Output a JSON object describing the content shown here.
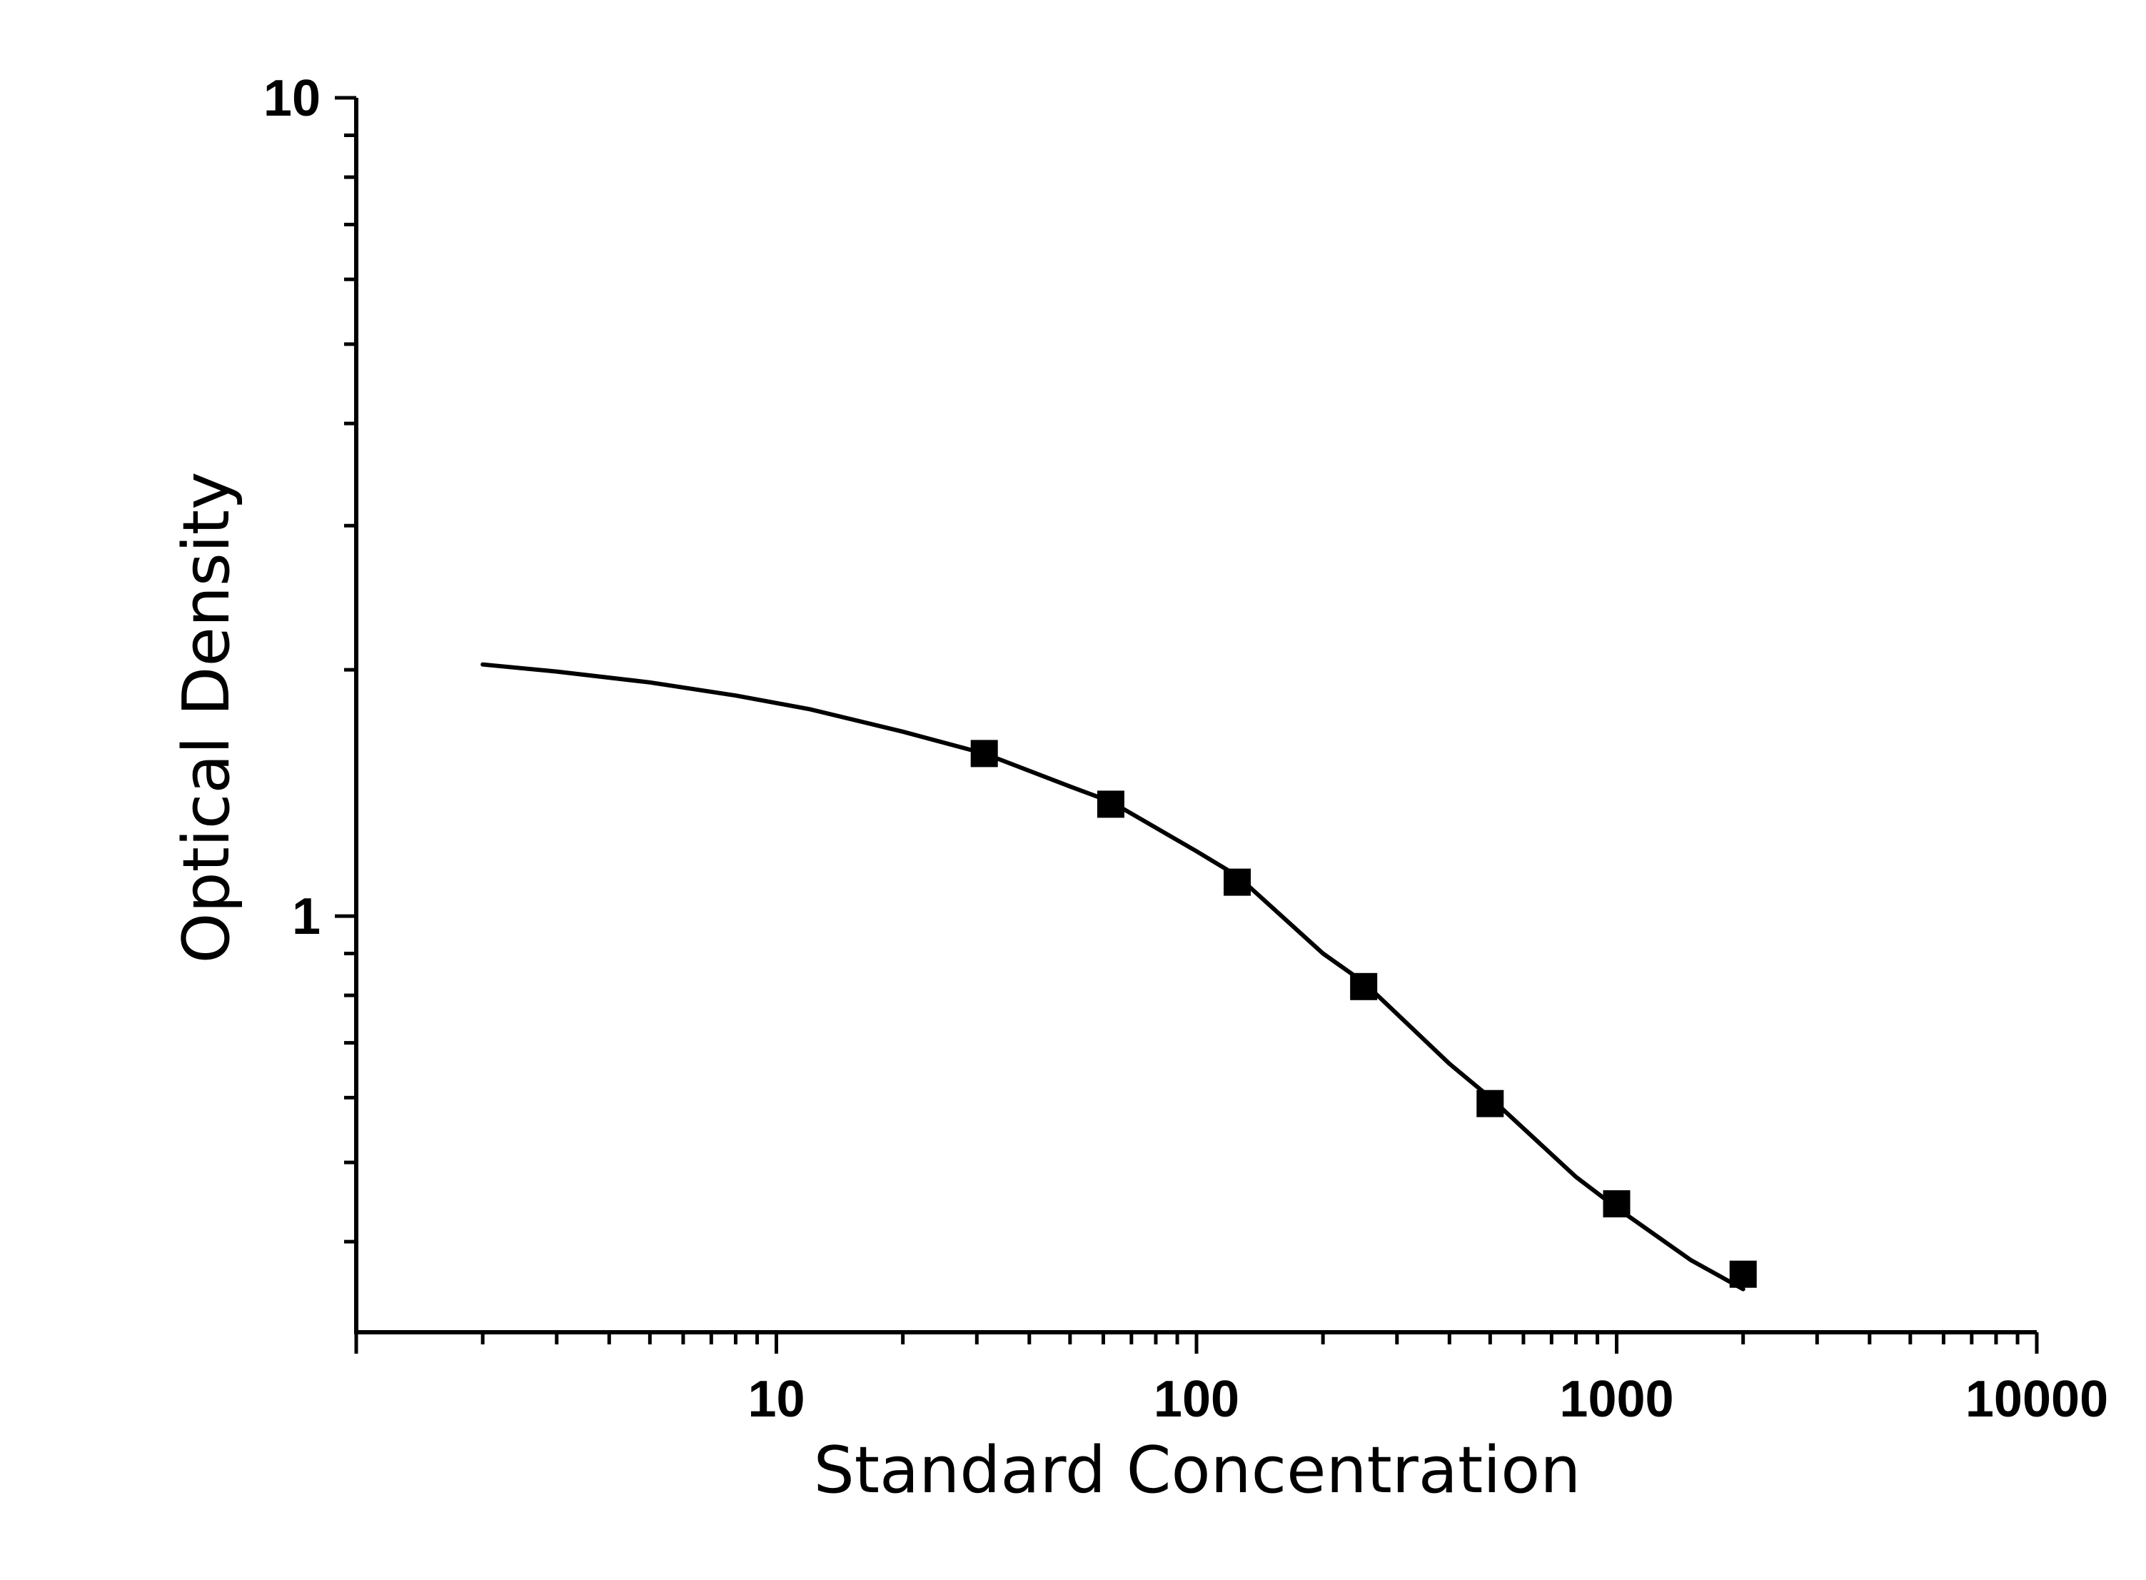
{
  "chart_data": {
    "type": "scatter",
    "title": "",
    "xlabel": "Standard Concentration",
    "ylabel": "Optical Density",
    "x_scale": "log",
    "y_scale": "log",
    "xlim": [
      1,
      10000
    ],
    "ylim": [
      0.31,
      10
    ],
    "x_ticks": [
      10,
      100,
      1000,
      10000
    ],
    "x_tick_labels": [
      "10",
      "100",
      "1000",
      "10000"
    ],
    "y_ticks": [
      1,
      10
    ],
    "y_tick_labels": [
      "1",
      "10"
    ],
    "grid": false,
    "legend": "none",
    "series": [
      {
        "marker": "square",
        "x": [
          31.25,
          62.5,
          125,
          250,
          500,
          1000,
          2000
        ],
        "y": [
          1.58,
          1.37,
          1.1,
          0.82,
          0.59,
          0.445,
          0.365
        ]
      }
    ],
    "fit_curve": {
      "x": [
        2,
        3,
        5,
        8,
        12,
        20,
        31.25,
        50,
        62.5,
        100,
        125,
        200,
        250,
        400,
        500,
        800,
        1000,
        1500,
        2000
      ],
      "y": [
        2.03,
        1.99,
        1.93,
        1.86,
        1.79,
        1.68,
        1.58,
        1.44,
        1.38,
        1.2,
        1.12,
        0.9,
        0.83,
        0.66,
        0.6,
        0.48,
        0.44,
        0.38,
        0.35
      ]
    },
    "colors": {
      "line": "#000000",
      "marker": "#000000",
      "axis": "#000000"
    }
  }
}
